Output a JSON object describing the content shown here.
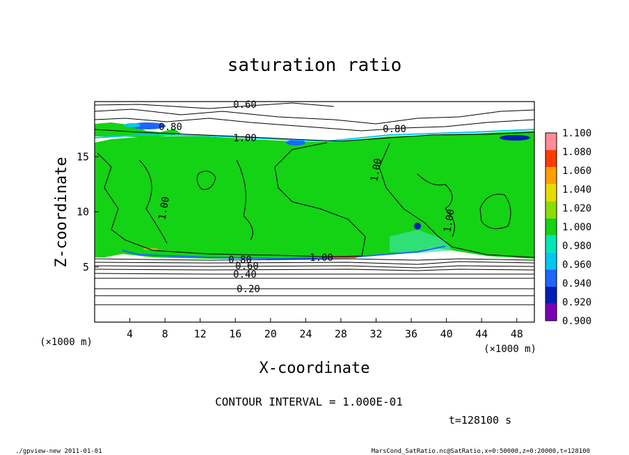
{
  "chart_data": {
    "type": "heatmap",
    "title": "saturation ratio",
    "xlabel": "X-coordinate",
    "ylabel": "Z-coordinate",
    "x_unit": "(×1000 m)",
    "y_unit": "(×1000 m)",
    "xlim": [
      0,
      50
    ],
    "ylim": [
      0,
      20
    ],
    "x_ticks": [
      "4",
      "8",
      "12",
      "16",
      "20",
      "24",
      "28",
      "32",
      "36",
      "40",
      "44",
      "48"
    ],
    "y_ticks": [
      "5",
      "10",
      "15"
    ],
    "colorbar": {
      "labels": [
        "0.900",
        "0.920",
        "0.940",
        "0.960",
        "0.980",
        "1.000",
        "1.020",
        "1.040",
        "1.060",
        "1.080",
        "1.100"
      ],
      "colors": [
        "#7a00b4",
        "#001eb4",
        "#1e64ff",
        "#00c8f0",
        "#00e6b4",
        "#14d214",
        "#8cdc00",
        "#e6dc00",
        "#ffa000",
        "#ff3c00",
        "#ff8c96"
      ]
    },
    "contour_labels": [
      "0.60",
      "0.80",
      "1.00",
      "0.80",
      "1.00",
      "1.00",
      "1.00",
      "1.00",
      "0.80",
      "0.60",
      "0.40",
      "0.20"
    ],
    "contour_interval": "CONTOUR INTERVAL = 1.000E-01",
    "time": "t=128100 s",
    "footer_left": "./gpview-new  2011-01-01",
    "footer_right": "MarsCond_SatRatio.nc@SatRatio,x=0:50000,z=0:20000,t=128100"
  }
}
